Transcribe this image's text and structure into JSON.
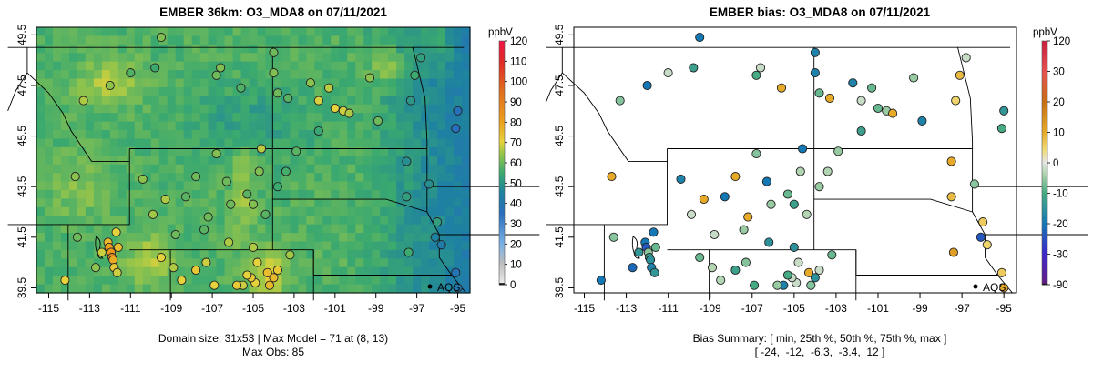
{
  "panels": [
    {
      "title": "EMBER 36km: O3_MDA8 on 07/11/2021",
      "legend_title": "ppbV",
      "legend_ticks": [
        "0",
        "10",
        "20",
        "30",
        "40",
        "50",
        "60",
        "70",
        "80",
        "90",
        "100",
        "110",
        "120"
      ],
      "x_ticks": [
        "-115",
        "-113",
        "-111",
        "-109",
        "-107",
        "-105",
        "-103",
        "-101",
        "-99",
        "-97",
        "-95"
      ],
      "y_ticks": [
        "39.5",
        "41.5",
        "43.5",
        "45.5",
        "47.5",
        "49.5"
      ],
      "label": "AQS",
      "caption1": "Domain size: 31x53 | Max Model = 71 at (8, 13)",
      "caption2": "Max Obs: 85"
    },
    {
      "title": "EMBER bias: O3_MDA8 on 07/11/2021",
      "legend_title": "ppbV",
      "legend_ticks": [
        "-90",
        "-30",
        "-20",
        "-10",
        "0",
        "10",
        "20",
        "30",
        "120"
      ],
      "x_ticks": [
        "-115",
        "-113",
        "-111",
        "-109",
        "-107",
        "-105",
        "-103",
        "-101",
        "-99",
        "-97",
        "-95"
      ],
      "y_ticks": [
        "39.5",
        "41.5",
        "43.5",
        "45.5",
        "47.5",
        "49.5"
      ],
      "label": "AQS",
      "caption1": "Bias Summary: [ min, 25th %, 50th %, 75th %, max ]",
      "caption2": "[ -24,  -12,  -6.3,  -3.4,  12 ]"
    }
  ],
  "bias_stats": {
    "min": -24,
    "p25": -12,
    "p50": -6.3,
    "p75": -3.4,
    "max": 12
  },
  "max_model": 71,
  "max_obs": 85
}
